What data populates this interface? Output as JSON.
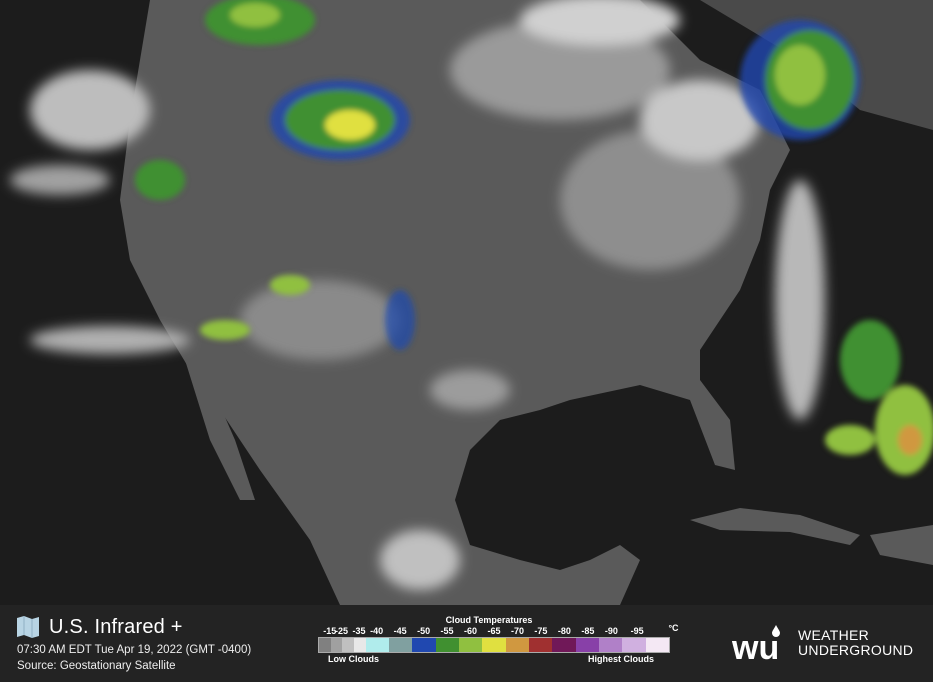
{
  "map": {
    "title": "U.S. Infrared +",
    "timestamp": "07:30 AM EDT Tue Apr 19, 2022 (GMT -0400)",
    "source": "Source: Geostationary Satellite",
    "icon": "map-icon"
  },
  "legend": {
    "title": "Cloud Temperatures",
    "unit": "°C",
    "low_label": "Low Clouds",
    "high_label": "Highest Clouds",
    "ticks": [
      "-15",
      "-25",
      "-35",
      "-40",
      "-45",
      "-50",
      "-55",
      "-60",
      "-65",
      "-70",
      "-75",
      "-80",
      "-85",
      "-90",
      "-95"
    ],
    "colors": [
      "#808080",
      "#a0a0a0",
      "#c0c0c0",
      "#e8e8e8",
      "#b0ecec",
      "#80a0a0",
      "#2048b0",
      "#409030",
      "#90c040",
      "#e0e040",
      "#d09840",
      "#a03030",
      "#701858",
      "#8840a8",
      "#b080c8",
      "#d0b0e0",
      "#f4e8f4"
    ]
  },
  "brand": {
    "logo_mark": "WU",
    "line1": "WEATHER",
    "line2": "UNDERGROUND"
  }
}
